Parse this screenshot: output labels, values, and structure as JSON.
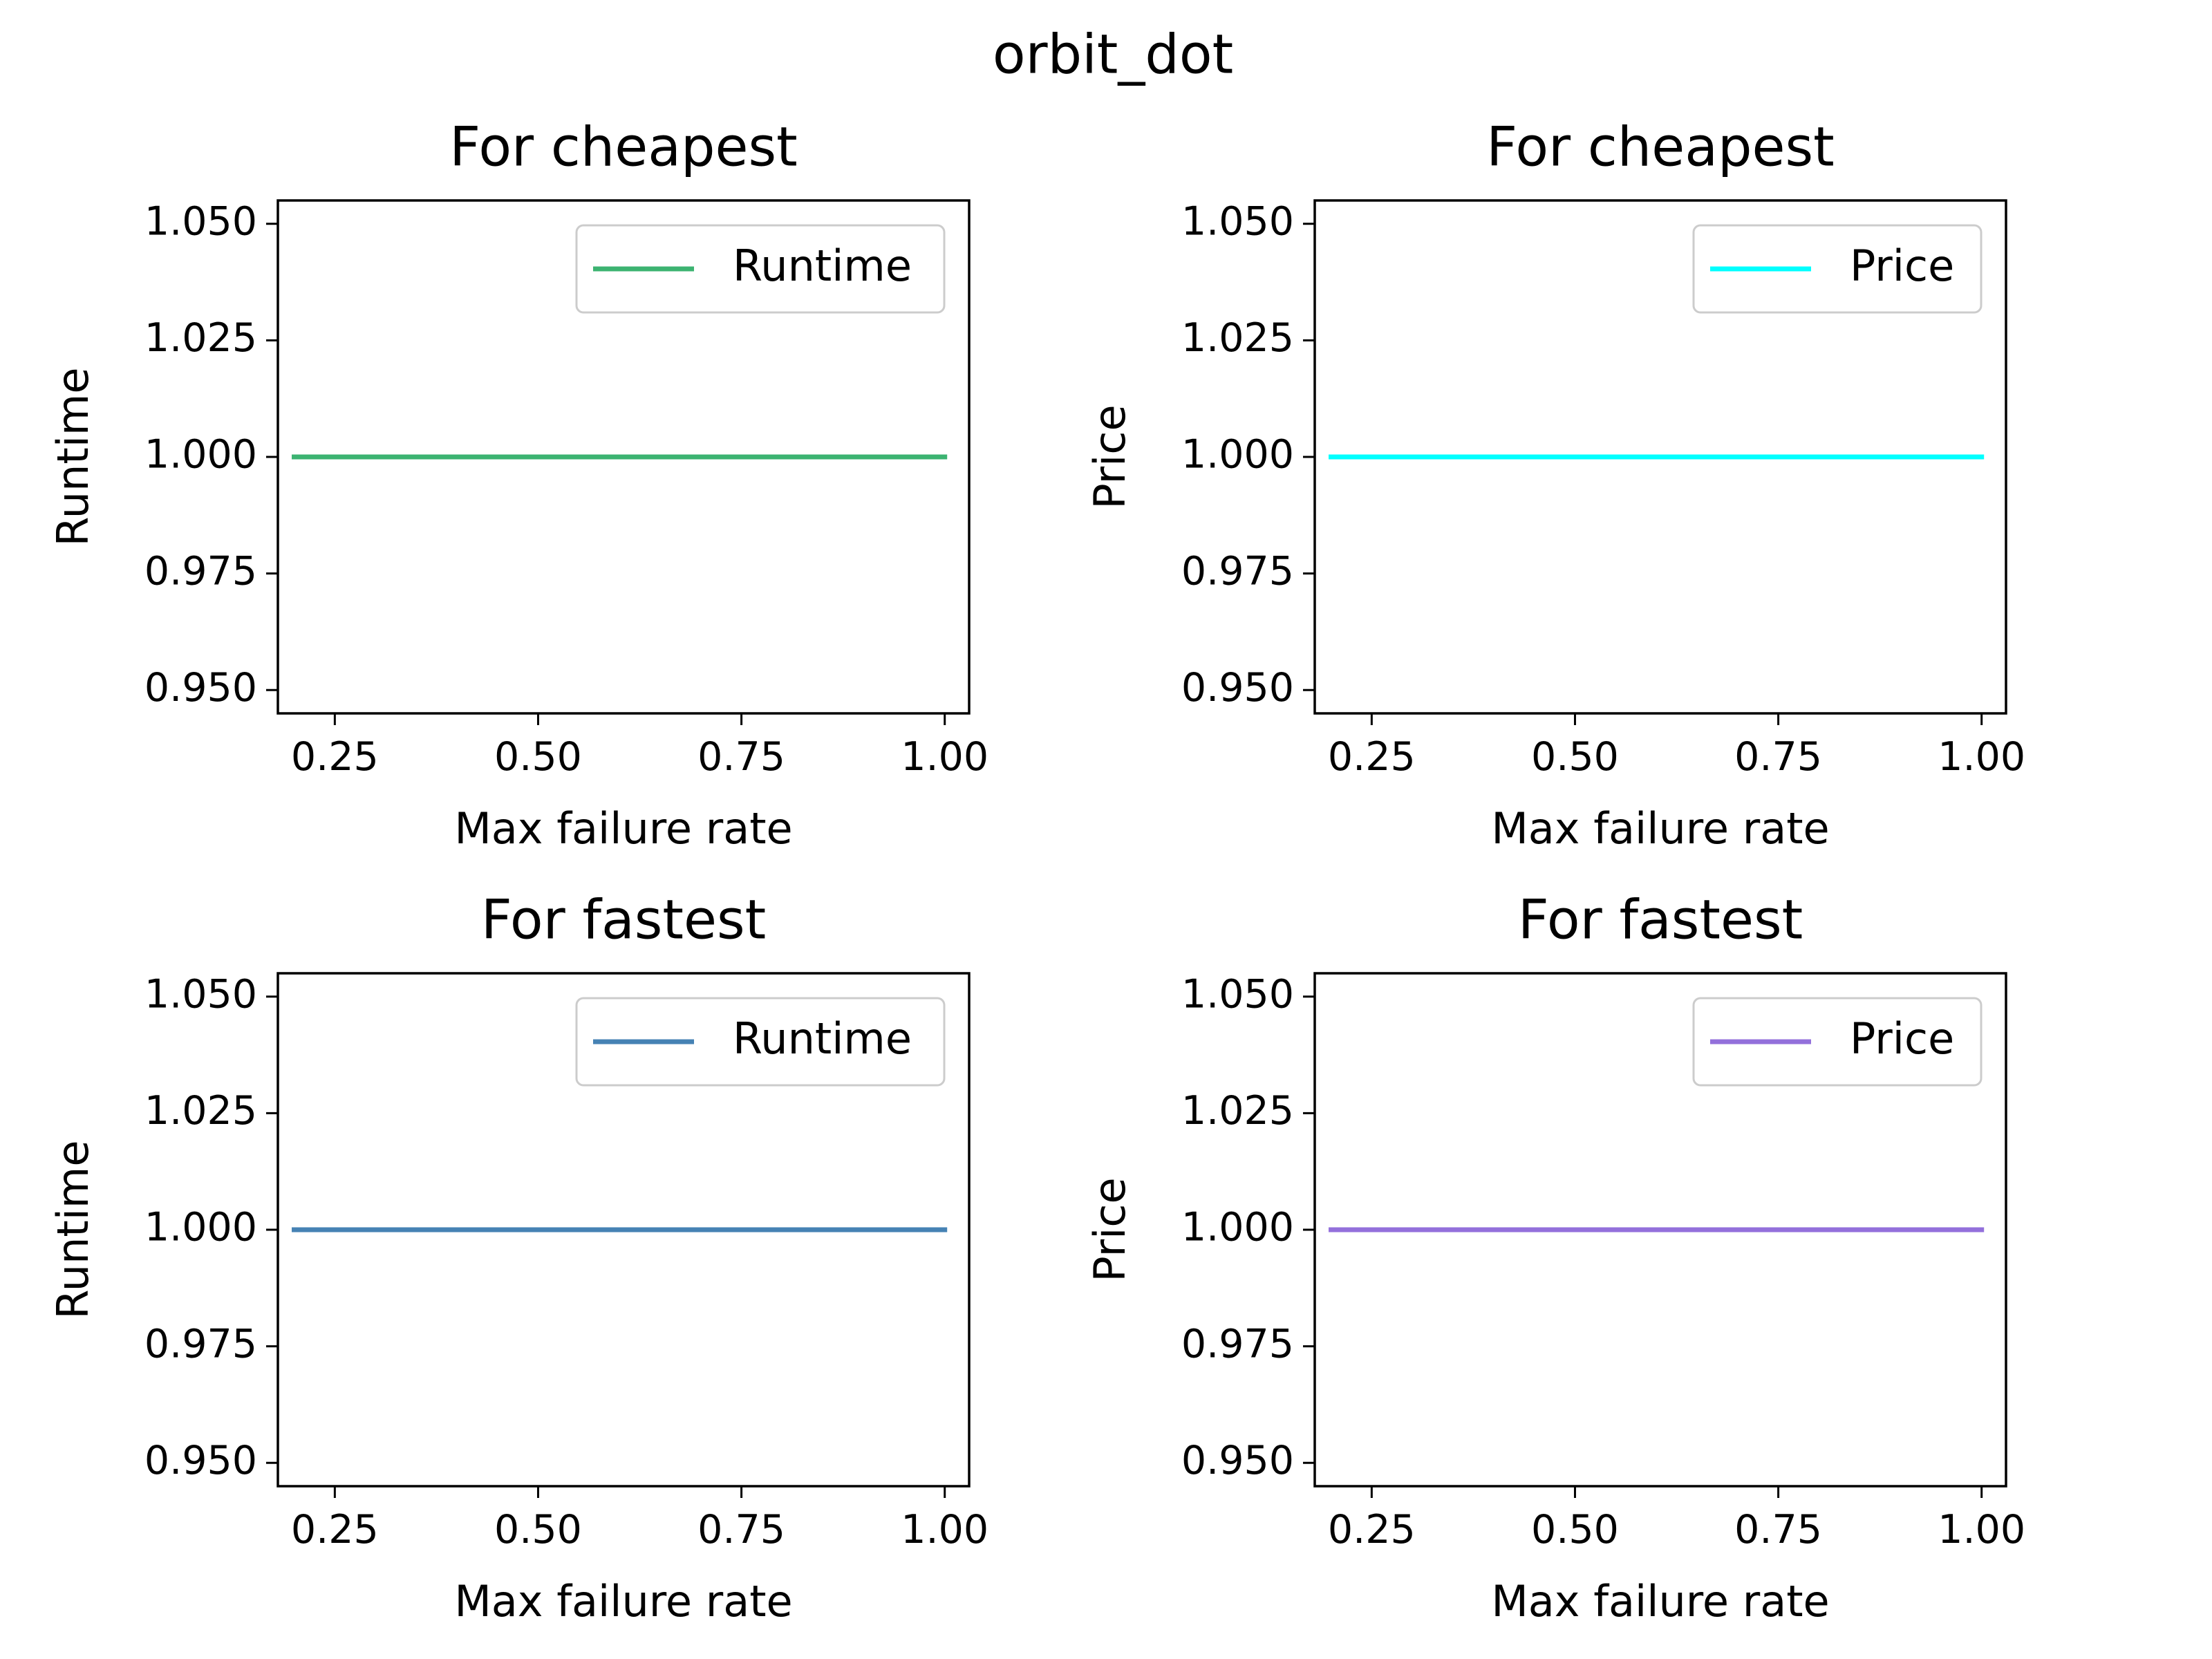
{
  "figure": {
    "suptitle": "orbit_dot"
  },
  "chart_data": [
    {
      "type": "line",
      "title": "For cheapest",
      "xlabel": "Max failure rate",
      "ylabel": "Runtime",
      "xlim": [
        0.18,
        1.03
      ],
      "ylim": [
        0.945,
        1.055
      ],
      "xticks": [
        0.25,
        0.5,
        0.75,
        1.0
      ],
      "xtick_labels": [
        "0.25",
        "0.50",
        "0.75",
        "1.00"
      ],
      "yticks": [
        0.95,
        0.975,
        1.0,
        1.025,
        1.05
      ],
      "ytick_labels": [
        "0.950",
        "0.975",
        "1.000",
        "1.025",
        "1.050"
      ],
      "grid": false,
      "legend": "upper right",
      "series": [
        {
          "name": "Runtime",
          "color": "#3cb371",
          "x": [
            0.2,
            1.0
          ],
          "y": [
            1.0,
            1.0
          ]
        }
      ]
    },
    {
      "type": "line",
      "title": "For cheapest",
      "xlabel": "Max failure rate",
      "ylabel": "Price",
      "xlim": [
        0.18,
        1.03
      ],
      "ylim": [
        0.945,
        1.055
      ],
      "xticks": [
        0.25,
        0.5,
        0.75,
        1.0
      ],
      "xtick_labels": [
        "0.25",
        "0.50",
        "0.75",
        "1.00"
      ],
      "yticks": [
        0.95,
        0.975,
        1.0,
        1.025,
        1.05
      ],
      "ytick_labels": [
        "0.950",
        "0.975",
        "1.000",
        "1.025",
        "1.050"
      ],
      "grid": false,
      "legend": "upper right",
      "series": [
        {
          "name": "Price",
          "color": "#00ffff",
          "x": [
            0.2,
            1.0
          ],
          "y": [
            1.0,
            1.0
          ]
        }
      ]
    },
    {
      "type": "line",
      "title": "For fastest",
      "xlabel": "Max failure rate",
      "ylabel": "Runtime",
      "xlim": [
        0.18,
        1.03
      ],
      "ylim": [
        0.945,
        1.055
      ],
      "xticks": [
        0.25,
        0.5,
        0.75,
        1.0
      ],
      "xtick_labels": [
        "0.25",
        "0.50",
        "0.75",
        "1.00"
      ],
      "yticks": [
        0.95,
        0.975,
        1.0,
        1.025,
        1.05
      ],
      "ytick_labels": [
        "0.950",
        "0.975",
        "1.000",
        "1.025",
        "1.050"
      ],
      "grid": false,
      "legend": "upper right",
      "series": [
        {
          "name": "Runtime",
          "color": "#4682b4",
          "x": [
            0.2,
            1.0
          ],
          "y": [
            1.0,
            1.0
          ]
        }
      ]
    },
    {
      "type": "line",
      "title": "For fastest",
      "xlabel": "Max failure rate",
      "ylabel": "Price",
      "xlim": [
        0.18,
        1.03
      ],
      "ylim": [
        0.945,
        1.055
      ],
      "xticks": [
        0.25,
        0.5,
        0.75,
        1.0
      ],
      "xtick_labels": [
        "0.25",
        "0.50",
        "0.75",
        "1.00"
      ],
      "yticks": [
        0.95,
        0.975,
        1.0,
        1.025,
        1.05
      ],
      "ytick_labels": [
        "0.950",
        "0.975",
        "1.000",
        "1.025",
        "1.050"
      ],
      "grid": false,
      "legend": "upper right",
      "series": [
        {
          "name": "Price",
          "color": "#9370db",
          "x": [
            0.2,
            1.0
          ],
          "y": [
            1.0,
            1.0
          ]
        }
      ]
    }
  ]
}
